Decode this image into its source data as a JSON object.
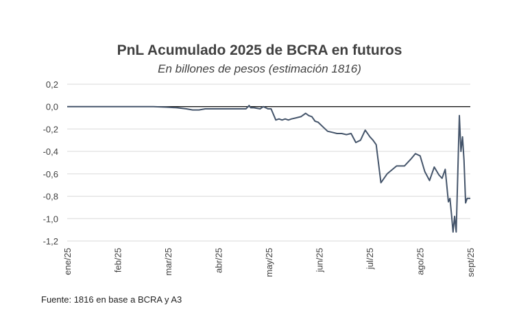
{
  "chart_data": {
    "type": "line",
    "title": "PnL Acumulado 2025 de BCRA en futuros",
    "subtitle": "En billones de pesos (estimación 1816)",
    "xlabel": "",
    "ylabel": "",
    "ylim": [
      -1.2,
      0.2
    ],
    "y_ticks": [
      "0,2",
      "0,0",
      "-0,2",
      "-0,4",
      "-0,6",
      "-0,8",
      "-1,0",
      "-1,2"
    ],
    "x_ticks": [
      "ene/25",
      "feb/25",
      "mar/25",
      "abr/25",
      "may/25",
      "jun/25",
      "jul/25",
      "ago/25",
      "sept/25"
    ],
    "grid": true,
    "zero_line": true,
    "line_color": "#44546a",
    "series": [
      {
        "x": [
          "2025-01-01",
          "2025-01-20",
          "2025-02-10",
          "2025-02-25",
          "2025-03-05",
          "2025-03-12",
          "2025-03-18",
          "2025-03-22",
          "2025-03-26",
          "2025-03-30",
          "2025-04-10",
          "2025-04-25",
          "2025-04-27",
          "2025-04-28",
          "2025-04-30",
          "2025-05-04",
          "2025-05-06",
          "2025-05-09",
          "2025-05-11",
          "2025-05-14",
          "2025-05-16",
          "2025-05-18",
          "2025-05-20",
          "2025-05-22",
          "2025-05-24",
          "2025-05-27",
          "2025-05-30",
          "2025-06-02",
          "2025-06-04",
          "2025-06-06",
          "2025-06-08",
          "2025-06-10",
          "2025-06-13",
          "2025-06-16",
          "2025-06-19",
          "2025-06-22",
          "2025-06-25",
          "2025-06-28",
          "2025-07-01",
          "2025-07-04",
          "2025-07-07",
          "2025-07-10",
          "2025-07-13",
          "2025-07-15",
          "2025-07-17",
          "2025-07-20",
          "2025-07-24",
          "2025-07-30",
          "2025-08-04",
          "2025-08-08",
          "2025-08-11",
          "2025-08-14",
          "2025-08-17",
          "2025-08-20",
          "2025-08-23",
          "2025-08-26",
          "2025-08-28",
          "2025-08-30",
          "2025-09-01",
          "2025-09-02",
          "2025-09-03",
          "2025-09-04",
          "2025-09-05",
          "2025-09-06",
          "2025-09-07",
          "2025-09-08",
          "2025-09-09",
          "2025-09-10",
          "2025-09-11",
          "2025-09-12",
          "2025-09-13",
          "2025-09-14",
          "2025-09-15"
        ],
        "values": [
          0.0,
          0.0,
          0.0,
          0.0,
          -0.005,
          -0.01,
          -0.02,
          -0.03,
          -0.03,
          -0.02,
          -0.02,
          -0.02,
          0.01,
          -0.01,
          -0.01,
          -0.02,
          0.0,
          -0.02,
          -0.02,
          -0.12,
          -0.11,
          -0.12,
          -0.11,
          -0.12,
          -0.11,
          -0.1,
          -0.09,
          -0.06,
          -0.08,
          -0.09,
          -0.13,
          -0.14,
          -0.18,
          -0.22,
          -0.23,
          -0.24,
          -0.24,
          -0.25,
          -0.24,
          -0.32,
          -0.3,
          -0.21,
          -0.27,
          -0.3,
          -0.34,
          -0.68,
          -0.6,
          -0.53,
          -0.53,
          -0.47,
          -0.42,
          -0.44,
          -0.58,
          -0.66,
          -0.54,
          -0.61,
          -0.64,
          -0.56,
          -0.85,
          -0.82,
          -0.96,
          -1.12,
          -0.98,
          -1.12,
          -0.6,
          -0.08,
          -0.4,
          -0.27,
          -0.48,
          -0.86,
          -0.82,
          -0.82,
          -0.82
        ]
      }
    ]
  },
  "source": "Fuente: 1816 en base a BCRA y A3"
}
